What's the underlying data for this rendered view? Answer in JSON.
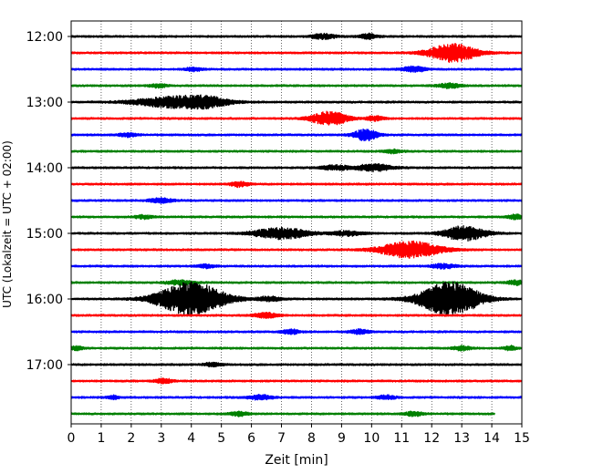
{
  "chart_data": {
    "type": "line",
    "title": "",
    "xlabel": "Zeit  [min]",
    "ylabel": "UTC (Lokalzeit = UTC + 02:00)",
    "xlim": [
      0,
      15
    ],
    "xticks": [
      0,
      1,
      2,
      3,
      4,
      5,
      6,
      7,
      8,
      9,
      10,
      11,
      12,
      13,
      14,
      15
    ],
    "yticks": [
      "12:00",
      "13:00",
      "14:00",
      "15:00",
      "16:00",
      "17:00"
    ],
    "grid": "vertical dotted",
    "trace_interval_minutes": 15,
    "start_time": "12:00",
    "color_cycle": [
      "#000000",
      "#ff0000",
      "#0000ff",
      "#008000"
    ],
    "traces": [
      {
        "start": "12:00",
        "color": "#000000",
        "amplitude": 0.15,
        "bursts": [
          {
            "t": 8.4,
            "a": 0.45,
            "w": 0.4
          },
          {
            "t": 9.9,
            "a": 0.45,
            "w": 0.3
          }
        ]
      },
      {
        "start": "12:15",
        "color": "#ff0000",
        "amplitude": 0.15,
        "bursts": [
          {
            "t": 12.7,
            "a": 1.6,
            "w": 0.8
          }
        ]
      },
      {
        "start": "12:30",
        "color": "#0000ff",
        "amplitude": 0.15,
        "bursts": [
          {
            "t": 11.4,
            "a": 0.45,
            "w": 0.4
          },
          {
            "t": 4.1,
            "a": 0.3,
            "w": 0.3
          }
        ]
      },
      {
        "start": "12:45",
        "color": "#008000",
        "amplitude": 0.15,
        "bursts": [
          {
            "t": 2.9,
            "a": 0.3,
            "w": 0.3
          },
          {
            "t": 12.6,
            "a": 0.4,
            "w": 0.4
          }
        ]
      },
      {
        "start": "13:00",
        "color": "#000000",
        "amplitude": 0.15,
        "bursts": [
          {
            "t": 3.3,
            "a": 0.9,
            "w": 1.2
          },
          {
            "t": 4.5,
            "a": 0.8,
            "w": 0.8
          }
        ]
      },
      {
        "start": "13:15",
        "color": "#ff0000",
        "amplitude": 0.15,
        "bursts": [
          {
            "t": 8.6,
            "a": 1.2,
            "w": 0.6
          },
          {
            "t": 10.1,
            "a": 0.4,
            "w": 0.3
          }
        ]
      },
      {
        "start": "13:30",
        "color": "#0000ff",
        "amplitude": 0.15,
        "bursts": [
          {
            "t": 9.8,
            "a": 1.0,
            "w": 0.4
          },
          {
            "t": 1.9,
            "a": 0.3,
            "w": 0.3
          }
        ]
      },
      {
        "start": "13:45",
        "color": "#008000",
        "amplitude": 0.15,
        "bursts": [
          {
            "t": 10.7,
            "a": 0.3,
            "w": 0.3
          }
        ]
      },
      {
        "start": "14:00",
        "color": "#000000",
        "amplitude": 0.15,
        "bursts": [
          {
            "t": 10.1,
            "a": 0.6,
            "w": 0.6
          },
          {
            "t": 8.8,
            "a": 0.4,
            "w": 0.5
          }
        ]
      },
      {
        "start": "14:15",
        "color": "#ff0000",
        "amplitude": 0.15,
        "bursts": [
          {
            "t": 5.6,
            "a": 0.45,
            "w": 0.3
          }
        ]
      },
      {
        "start": "14:30",
        "color": "#0000ff",
        "amplitude": 0.15,
        "bursts": [
          {
            "t": 3.0,
            "a": 0.4,
            "w": 0.4
          }
        ]
      },
      {
        "start": "14:45",
        "color": "#008000",
        "amplitude": 0.15,
        "bursts": [
          {
            "t": 2.4,
            "a": 0.3,
            "w": 0.3
          },
          {
            "t": 14.8,
            "a": 0.4,
            "w": 0.3
          }
        ]
      },
      {
        "start": "15:00",
        "color": "#000000",
        "amplitude": 0.15,
        "bursts": [
          {
            "t": 7.0,
            "a": 1.0,
            "w": 0.9
          },
          {
            "t": 13.1,
            "a": 1.3,
            "w": 0.7
          },
          {
            "t": 9.2,
            "a": 0.4,
            "w": 0.5
          }
        ]
      },
      {
        "start": "15:15",
        "color": "#ff0000",
        "amplitude": 0.15,
        "bursts": [
          {
            "t": 11.3,
            "a": 1.5,
            "w": 1.0
          }
        ]
      },
      {
        "start": "15:30",
        "color": "#0000ff",
        "amplitude": 0.15,
        "bursts": [
          {
            "t": 12.4,
            "a": 0.4,
            "w": 0.4
          },
          {
            "t": 4.5,
            "a": 0.3,
            "w": 0.3
          }
        ]
      },
      {
        "start": "15:45",
        "color": "#008000",
        "amplitude": 0.15,
        "bursts": [
          {
            "t": 3.6,
            "a": 0.4,
            "w": 0.4
          },
          {
            "t": 14.8,
            "a": 0.4,
            "w": 0.3
          }
        ]
      },
      {
        "start": "16:00",
        "color": "#000000",
        "amplitude": 0.15,
        "bursts": [
          {
            "t": 4.0,
            "a": 3.0,
            "w": 1.1
          },
          {
            "t": 12.6,
            "a": 3.0,
            "w": 1.0
          },
          {
            "t": 6.6,
            "a": 0.4,
            "w": 0.4
          }
        ]
      },
      {
        "start": "16:15",
        "color": "#ff0000",
        "amplitude": 0.15,
        "bursts": [
          {
            "t": 6.5,
            "a": 0.45,
            "w": 0.4
          }
        ]
      },
      {
        "start": "16:30",
        "color": "#0000ff",
        "amplitude": 0.15,
        "bursts": [
          {
            "t": 7.3,
            "a": 0.4,
            "w": 0.3
          },
          {
            "t": 9.6,
            "a": 0.4,
            "w": 0.3
          }
        ]
      },
      {
        "start": "16:45",
        "color": "#008000",
        "amplitude": 0.15,
        "bursts": [
          {
            "t": 0.2,
            "a": 0.4,
            "w": 0.2
          },
          {
            "t": 13.0,
            "a": 0.4,
            "w": 0.3
          },
          {
            "t": 14.6,
            "a": 0.4,
            "w": 0.2
          }
        ]
      },
      {
        "start": "17:00",
        "color": "#000000",
        "amplitude": 0.15,
        "bursts": [
          {
            "t": 4.7,
            "a": 0.3,
            "w": 0.3
          }
        ]
      },
      {
        "start": "17:15",
        "color": "#ff0000",
        "amplitude": 0.15,
        "bursts": [
          {
            "t": 3.1,
            "a": 0.4,
            "w": 0.3
          }
        ]
      },
      {
        "start": "17:30",
        "color": "#0000ff",
        "amplitude": 0.15,
        "bursts": [
          {
            "t": 1.4,
            "a": 0.35,
            "w": 0.2
          },
          {
            "t": 6.3,
            "a": 0.4,
            "w": 0.4
          },
          {
            "t": 10.5,
            "a": 0.35,
            "w": 0.3
          }
        ]
      },
      {
        "start": "17:45",
        "color": "#008000",
        "amplitude": 0.15,
        "end_x": 14.1,
        "bursts": [
          {
            "t": 5.6,
            "a": 0.4,
            "w": 0.3
          },
          {
            "t": 11.4,
            "a": 0.35,
            "w": 0.3
          }
        ]
      }
    ]
  }
}
